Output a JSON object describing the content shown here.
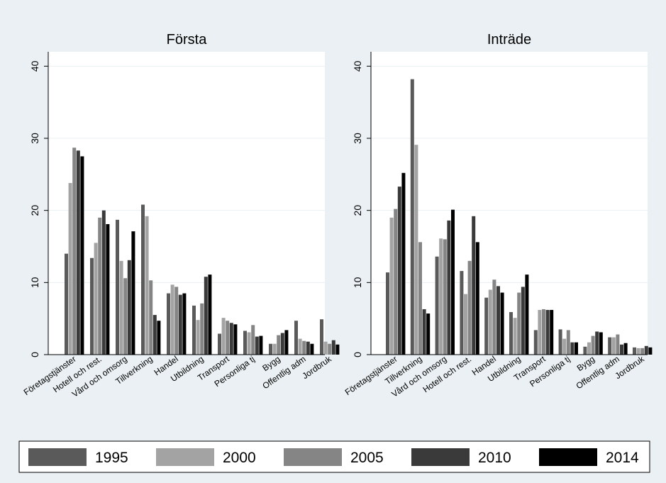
{
  "colors": {
    "figure_bg": "#eaf0f3",
    "plot_bg": "#ffffff",
    "grid": "#eaf0f3",
    "series": [
      "#5a5a5a",
      "#a3a3a3",
      "#858585",
      "#3a3a3a",
      "#000000"
    ]
  },
  "chart_data": [
    {
      "type": "bar",
      "title": "Första",
      "xlabel": "",
      "ylabel": "",
      "ylim": [
        0,
        42
      ],
      "yticks": [
        0,
        10,
        20,
        30,
        40
      ],
      "grid": true,
      "legend_position": "bottom",
      "categories": [
        "Företagstjänster",
        "Hotell och rest.",
        "Vård och omsorg",
        "Tillverkning",
        "Handel",
        "Utbildning",
        "Transport",
        "Personliga tj",
        "Bygg",
        "Offentlig adm",
        "Jordbruk"
      ],
      "series": [
        {
          "name": "1995",
          "values": [
            14.0,
            13.4,
            18.7,
            20.8,
            8.5,
            6.8,
            2.9,
            3.3,
            1.5,
            4.7,
            4.9
          ]
        },
        {
          "name": "2000",
          "values": [
            23.8,
            15.5,
            13.0,
            19.2,
            9.7,
            4.8,
            5.1,
            3.1,
            1.5,
            2.2,
            1.8
          ]
        },
        {
          "name": "2005",
          "values": [
            28.7,
            19.0,
            10.6,
            10.3,
            9.4,
            7.1,
            4.7,
            4.1,
            2.7,
            1.9,
            1.5
          ]
        },
        {
          "name": "2010",
          "values": [
            28.3,
            20.0,
            13.1,
            5.5,
            8.3,
            10.8,
            4.4,
            2.5,
            3.0,
            1.8,
            2.0
          ]
        },
        {
          "name": "2014",
          "values": [
            27.5,
            18.1,
            17.1,
            4.7,
            8.5,
            11.1,
            4.2,
            2.6,
            3.4,
            1.5,
            1.4
          ]
        }
      ]
    },
    {
      "type": "bar",
      "title": "Inträde",
      "xlabel": "",
      "ylabel": "",
      "ylim": [
        0,
        42
      ],
      "yticks": [
        0,
        10,
        20,
        30,
        40
      ],
      "grid": true,
      "legend_position": "bottom",
      "categories": [
        "Företagstjänster",
        "Tillverkning",
        "Vård och omsorg",
        "Hotell och rest.",
        "Handel",
        "Utbildning",
        "Transport",
        "Personliga tj",
        "Bygg",
        "Offentlig adm",
        "Jordbruk"
      ],
      "series": [
        {
          "name": "1995",
          "values": [
            11.4,
            38.2,
            13.6,
            11.6,
            7.9,
            5.9,
            3.4,
            3.5,
            1.1,
            2.4,
            1.0
          ]
        },
        {
          "name": "2000",
          "values": [
            19.0,
            29.1,
            16.1,
            8.4,
            9.0,
            5.1,
            6.2,
            2.2,
            1.7,
            2.4,
            0.9
          ]
        },
        {
          "name": "2005",
          "values": [
            20.2,
            15.6,
            16.0,
            13.0,
            10.4,
            8.6,
            6.3,
            3.4,
            2.6,
            2.8,
            0.9
          ]
        },
        {
          "name": "2010",
          "values": [
            23.3,
            6.3,
            18.6,
            19.2,
            9.5,
            9.4,
            6.2,
            1.7,
            3.2,
            1.4,
            1.2
          ]
        },
        {
          "name": "2014",
          "values": [
            25.2,
            5.7,
            20.1,
            15.6,
            8.6,
            11.1,
            6.2,
            1.7,
            3.1,
            1.6,
            1.0
          ]
        }
      ]
    }
  ],
  "legend": {
    "items": [
      "1995",
      "2000",
      "2005",
      "2010",
      "2014"
    ]
  }
}
